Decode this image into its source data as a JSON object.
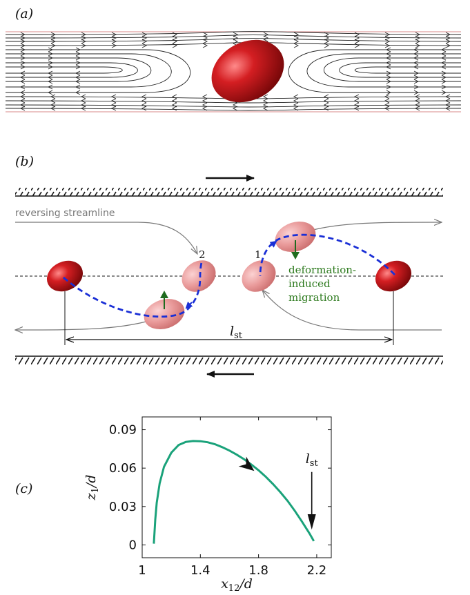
{
  "panels": {
    "a": {
      "label": "(a)"
    },
    "b": {
      "label": "(b)",
      "streamline_label": "reversing streamline",
      "drop_label_1": "1",
      "drop_label_2": "2",
      "migration_label": [
        "deformation-",
        "induced",
        "migration"
      ],
      "lst_symbol": "l",
      "lst_sub": "st"
    },
    "c": {
      "label": "(c)"
    }
  },
  "colors": {
    "drop_dark": "#b50f14",
    "drop_light": "#e89090",
    "trajectory": "#1a2fd6",
    "migration_arrow": "#1e6b1e",
    "curve": "#1aa27a",
    "streamline_gray": "#777777"
  },
  "chart_data": {
    "type": "line",
    "xlabel": "x12/d",
    "xlabel_main": "x",
    "xlabel_sub": "12",
    "xlabel_tail": "/d",
    "ylabel": "z1/d",
    "ylabel_main": "z",
    "ylabel_sub": "1",
    "ylabel_tail": "/d",
    "xlim": [
      1.0,
      2.3
    ],
    "ylim": [
      -0.01,
      0.1
    ],
    "xticks": [
      1,
      1.4,
      1.8,
      2.2
    ],
    "xtick_labels": [
      "1",
      "1.4",
      "1.8",
      "2.2"
    ],
    "yticks": [
      0,
      0.03,
      0.06,
      0.09
    ],
    "ytick_labels": [
      "0",
      "0.03",
      "0.06",
      "0.09"
    ],
    "annotation": "lst",
    "annotation_main": "l",
    "annotation_sub": "st",
    "annotation_x": 2.18,
    "series": [
      {
        "x": [
          1.08,
          1.09,
          1.1,
          1.12,
          1.15,
          1.2,
          1.25,
          1.3,
          1.35,
          1.4,
          1.45,
          1.5,
          1.55,
          1.6,
          1.65,
          1.7,
          1.75,
          1.8,
          1.85,
          1.9,
          1.95,
          2.0,
          2.05,
          2.1,
          2.15,
          2.18
        ],
        "y": [
          0.001,
          0.02,
          0.033,
          0.048,
          0.061,
          0.072,
          0.078,
          0.0805,
          0.0812,
          0.081,
          0.0802,
          0.0787,
          0.0764,
          0.0737,
          0.0705,
          0.067,
          0.0628,
          0.0583,
          0.0532,
          0.0475,
          0.0412,
          0.0343,
          0.0265,
          0.018,
          0.009,
          0.003
        ]
      }
    ]
  }
}
